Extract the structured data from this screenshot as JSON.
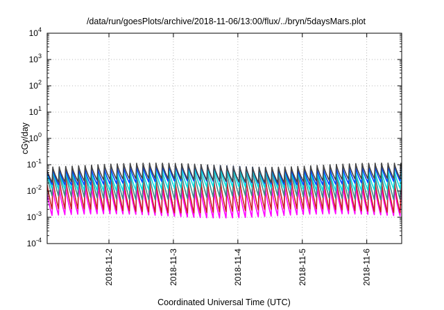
{
  "chart_data": {
    "type": "line",
    "title": "/data/run/goesPlots/archive/2018-11-06/13:00/flux/../bryn/5daysMars.plot",
    "xlabel": "Coordinated Universal Time (UTC)",
    "ylabel": "cGy/day",
    "y_scale": "log",
    "ylim": [
      0.0001,
      10000
    ],
    "y_ticks": [
      {
        "value": 0.0001,
        "exp": "-4"
      },
      {
        "value": 0.001,
        "exp": "-3"
      },
      {
        "value": 0.01,
        "exp": "-2"
      },
      {
        "value": 0.1,
        "exp": "-1"
      },
      {
        "value": 1,
        "exp": "0"
      },
      {
        "value": 10,
        "exp": "1"
      },
      {
        "value": 100,
        "exp": "2"
      },
      {
        "value": 1000,
        "exp": "3"
      },
      {
        "value": 10000,
        "exp": "4"
      }
    ],
    "y_tick_base": "10",
    "xlim": [
      "2018-11-01T01:00",
      "2018-11-06T13:00"
    ],
    "x_ticks": [
      "2018-11-2",
      "2018-11-3",
      "2018-11-4",
      "2018-11-5",
      "2018-11-6"
    ],
    "grid": true,
    "grid_style": "dotted",
    "cycle_hours": 2.4,
    "cycle_shape": "sawtooth: sharp rise followed by decay over each ~2.4 h cycle",
    "series": [
      {
        "color": "#ff00ff",
        "peak": 0.014,
        "trough": 0.0011
      },
      {
        "color": "#cc2020",
        "peak": 0.03,
        "trough": 0.0017
      },
      {
        "color": "#3c8c8c",
        "peak": 0.055,
        "trough": 0.0055
      },
      {
        "color": "#00e0e0",
        "peak": 0.07,
        "trough": 0.012
      },
      {
        "color": "#0044ff",
        "peak": 0.085,
        "trough": 0.02
      },
      {
        "color": "#444444",
        "peak": 0.1,
        "trough": 0.025
      }
    ]
  }
}
